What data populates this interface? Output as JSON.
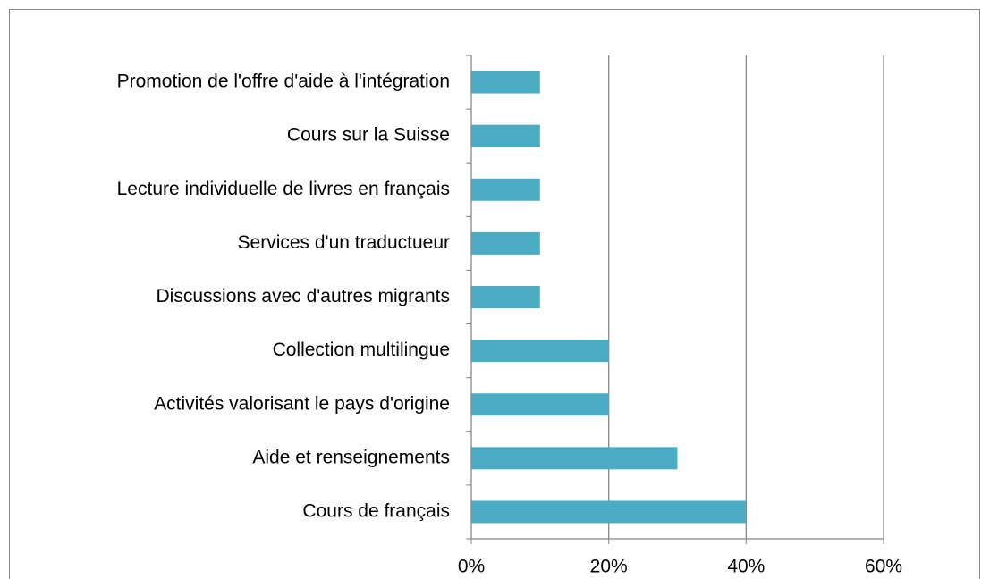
{
  "chart_data": {
    "type": "bar",
    "orientation": "horizontal",
    "categories": [
      "Promotion de l'offre d'aide à l'intégration",
      "Cours sur la Suisse",
      "Lecture individuelle de livres en français",
      "Services d'un traductueur",
      "Discussions avec d'autres migrants",
      "Collection multilingue",
      "Activités valorisant le pays d'origine",
      "Aide et renseignements",
      "Cours de français"
    ],
    "values": [
      10,
      10,
      10,
      10,
      10,
      20,
      20,
      30,
      40
    ],
    "color": "#4bacc6",
    "xlim": [
      0,
      60
    ],
    "xticks": [
      {
        "value": 0,
        "label": "0%"
      },
      {
        "value": 20,
        "label": "20%"
      },
      {
        "value": 40,
        "label": "40%"
      },
      {
        "value": 60,
        "label": "60%"
      }
    ],
    "grid": true
  }
}
